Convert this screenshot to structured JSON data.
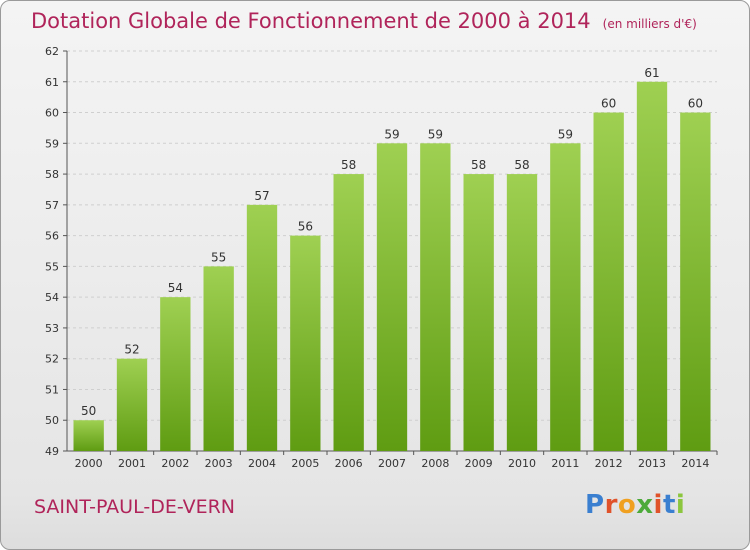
{
  "header": {
    "title": "Dotation Globale de Fonctionnement de 2000 à 2014",
    "subtitle": "(en milliers d'€)"
  },
  "footer": {
    "commune": "SAINT-PAUL-DE-VERN",
    "logo_letters": [
      "P",
      "r",
      "o",
      "x",
      "i",
      "t",
      "i"
    ],
    "logo_colors": [
      "#3a7fd0",
      "#e0522a",
      "#f0a020",
      "#4caa3a",
      "#e0522a",
      "#3a7fd0",
      "#8cc63e"
    ]
  },
  "chart_data": {
    "type": "bar",
    "title": "Dotation Globale de Fonctionnement de 2000 à 2014",
    "subtitle": "(en milliers d'€)",
    "categories": [
      "2000",
      "2001",
      "2002",
      "2003",
      "2004",
      "2005",
      "2006",
      "2007",
      "2008",
      "2009",
      "2010",
      "2011",
      "2012",
      "2013",
      "2014"
    ],
    "values": [
      50,
      52,
      54,
      55,
      57,
      56,
      58,
      59,
      59,
      58,
      58,
      59,
      60,
      61,
      60
    ],
    "data_labels": [
      "50",
      "52",
      "54",
      "55",
      "57",
      "56",
      "58",
      "59",
      "59",
      "58",
      "58",
      "59",
      "60",
      "61",
      "60"
    ],
    "ylim": [
      49,
      62
    ],
    "yticks": [
      "49",
      "50",
      "51",
      "52",
      "53",
      "54",
      "55",
      "56",
      "57",
      "58",
      "59",
      "60",
      "61",
      "62"
    ],
    "grid": true,
    "colors": {
      "bar_light": "#9fd052",
      "bar_dark": "#5f9c12",
      "grid": "#cfcfcf"
    }
  }
}
